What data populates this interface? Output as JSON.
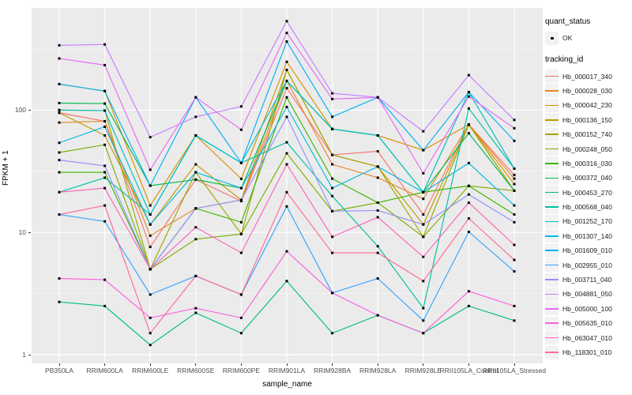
{
  "colors": {
    "panel_bg": "#EBEBEB",
    "grid_major": "#FFFFFF",
    "grid_minor": "#F7F7F7",
    "axis_text": "#4D4D4D",
    "point": "#000000",
    "legend_key_bg": "#F2F2F2"
  },
  "legend": {
    "quant_status_title": "quant_status",
    "quant_ok_label": "OK",
    "tracking_id_title": "tracking_id"
  },
  "chart_data": {
    "type": "line",
    "title": "",
    "xlabel": "sample_name",
    "ylabel": "FPKM + 1",
    "log_y": true,
    "ylim": [
      1,
      680
    ],
    "yticks": [
      1,
      10,
      100
    ],
    "grid": true,
    "legend_position": "right",
    "marker": "point",
    "marker_color": "#000000",
    "categories": [
      "PB350LA",
      "RRIM600LA",
      "RRIM600LE",
      "RRIM600SE",
      "RRIM600PE",
      "RRIM901LA",
      "RRIM928BA",
      "RRIM928LA",
      "RRIM928LE",
      "RRII105LA_Control",
      "RRII105LA_Stressed"
    ],
    "series": [
      {
        "name": "Hb_000017_340",
        "color": "#F8766D",
        "values": [
          95,
          81,
          7.6,
          27,
          18,
          151,
          43,
          46,
          14,
          76,
          29.5
        ]
      },
      {
        "name": "Hb_000028_030",
        "color": "#E88526",
        "values": [
          79,
          81,
          9.4,
          15.7,
          18.4,
          173,
          36,
          28,
          18.8,
          76,
          27.5
        ]
      },
      {
        "name": "Hb_000042_230",
        "color": "#D89000",
        "values": [
          163,
          143,
          16.6,
          62,
          27.4,
          248,
          70,
          62,
          47,
          76,
          24.8
        ]
      },
      {
        "name": "Hb_000136_150",
        "color": "#C09B00",
        "values": [
          95,
          62,
          11.6,
          36,
          18.4,
          213,
          43,
          34.5,
          11.6,
          76,
          21.9
        ]
      },
      {
        "name": "Hb_000152_740",
        "color": "#A3A500",
        "values": [
          100,
          99,
          5.0,
          31,
          9.7,
          213,
          43,
          34.5,
          9.2,
          76,
          21.9
        ]
      },
      {
        "name": "Hb_000248_050",
        "color": "#7CAE00",
        "values": [
          45,
          52,
          5.0,
          8.8,
          9.7,
          44.3,
          14.9,
          17.5,
          9.2,
          24,
          21.9
        ]
      },
      {
        "name": "Hb_000316_030",
        "color": "#39B600",
        "values": [
          31,
          31,
          5.0,
          15.7,
          12.1,
          127,
          27.5,
          17.5,
          21.3,
          24,
          14
        ]
      },
      {
        "name": "Hb_000372_040",
        "color": "#00BB4E",
        "values": [
          114,
          113,
          24.1,
          27,
          23,
          173,
          70,
          62,
          21.3,
          64.6,
          21.9
        ]
      },
      {
        "name": "Hb_000453_270",
        "color": "#00BF7D",
        "values": [
          2.7,
          2.5,
          1.2,
          2.2,
          1.5,
          4.0,
          1.5,
          2.1,
          1.5,
          2.5,
          1.9
        ]
      },
      {
        "name": "Hb_000568_040",
        "color": "#00C1A3",
        "values": [
          21.3,
          28,
          14,
          62,
          37,
          54.5,
          19.8,
          7.7,
          2.4,
          103,
          33.2
        ]
      },
      {
        "name": "Hb_001252_170",
        "color": "#00BFC4",
        "values": [
          100,
          99,
          14,
          62,
          37,
          173,
          70,
          62,
          21.3,
          140,
          33.2
        ]
      },
      {
        "name": "Hb_001307_140",
        "color": "#00BAE0",
        "values": [
          54,
          73,
          11.6,
          31,
          23,
          106,
          23,
          34.5,
          21.3,
          36.9,
          16.6
        ]
      },
      {
        "name": "Hb_001609_010",
        "color": "#00B0F6",
        "values": [
          163,
          143,
          24.1,
          127,
          37,
          363,
          88,
          127,
          47,
          140,
          56
        ]
      },
      {
        "name": "Hb_002955_010",
        "color": "#35A2FF",
        "values": [
          14,
          12.3,
          3.1,
          4.4,
          3.1,
          16.3,
          3.2,
          4.2,
          1.9,
          10.1,
          4.8
        ]
      },
      {
        "name": "Hb_003711_040",
        "color": "#9590FF",
        "values": [
          39,
          35,
          5.0,
          15.7,
          18.4,
          88,
          14.9,
          15.1,
          11.6,
          20.4,
          12.1
        ]
      },
      {
        "name": "Hb_004881_050",
        "color": "#C77CFF",
        "values": [
          338,
          344,
          60,
          88,
          107,
          533,
          137,
          127,
          67,
          193,
          83
        ]
      },
      {
        "name": "Hb_005000_100",
        "color": "#E76BF3",
        "values": [
          264,
          233,
          32.5,
          127,
          69,
          427,
          123,
          127,
          30.4,
          129,
          71
        ]
      },
      {
        "name": "Hb_005635_010",
        "color": "#FA62DB",
        "values": [
          4.2,
          4.1,
          2.0,
          2.4,
          2.0,
          7.0,
          3.2,
          2.1,
          1.5,
          3.3,
          2.5
        ]
      },
      {
        "name": "Hb_063047_010",
        "color": "#FF62BC",
        "values": [
          21.3,
          23,
          5.0,
          11,
          6.8,
          36,
          9.2,
          13.3,
          6.3,
          17.5,
          7.9
        ]
      },
      {
        "name": "Hb_118301_010",
        "color": "#FF6A98",
        "values": [
          14,
          16.6,
          1.5,
          4.4,
          3.1,
          21.3,
          6.8,
          6.8,
          4.0,
          13.0,
          5.95
        ]
      }
    ]
  }
}
